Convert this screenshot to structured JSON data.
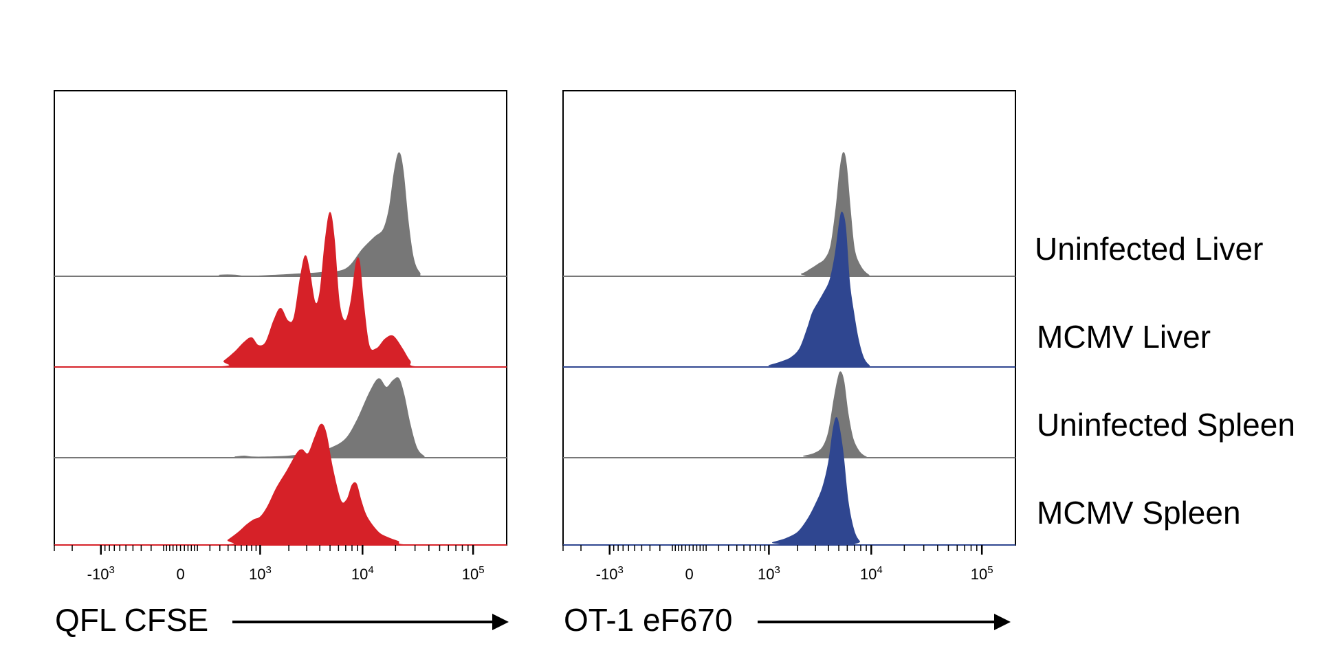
{
  "chart_data": [
    {
      "type": "histogram",
      "xlabel": "QFL CFSE",
      "xscale": "biexponential",
      "xlim": [
        -3000,
        200000
      ],
      "tick_labels": [
        {
          "value": -1000,
          "base": "-10",
          "exp": "3"
        },
        {
          "value": 0,
          "base": "0",
          "exp": ""
        },
        {
          "value": 1000,
          "base": "10",
          "exp": "3"
        },
        {
          "value": 10000,
          "base": "10",
          "exp": "4"
        },
        {
          "value": 100000,
          "base": "10",
          "exp": "5"
        }
      ],
      "series": [
        {
          "label": "Uninfected Liver",
          "color": "#777777",
          "points": [
            [
              -3000,
              0
            ],
            [
              200,
              0
            ],
            [
              300,
              0.01
            ],
            [
              500,
              0.01
            ],
            [
              700,
              0.0
            ],
            [
              1500,
              0.01
            ],
            [
              2500,
              0.02
            ],
            [
              4000,
              0.03
            ],
            [
              7000,
              0.06
            ],
            [
              10000,
              0.22
            ],
            [
              13000,
              0.32
            ],
            [
              15500,
              0.38
            ],
            [
              17500,
              0.55
            ],
            [
              19500,
              0.85
            ],
            [
              21500,
              1.0
            ],
            [
              23500,
              0.85
            ],
            [
              26000,
              0.45
            ],
            [
              29000,
              0.15
            ],
            [
              33000,
              0.03
            ],
            [
              40000,
              0
            ],
            [
              200000,
              0
            ]
          ]
        },
        {
          "label": "MCMV Liver",
          "color": "#d62128",
          "points": [
            [
              -3000,
              0
            ],
            [
              250,
              0
            ],
            [
              350,
              0.04
            ],
            [
              500,
              0.1
            ],
            [
              650,
              0.16
            ],
            [
              800,
              0.19
            ],
            [
              950,
              0.14
            ],
            [
              1150,
              0.16
            ],
            [
              1400,
              0.3
            ],
            [
              1650,
              0.38
            ],
            [
              1950,
              0.3
            ],
            [
              2250,
              0.32
            ],
            [
              2600,
              0.58
            ],
            [
              2900,
              0.72
            ],
            [
              3200,
              0.62
            ],
            [
              3600,
              0.42
            ],
            [
              4000,
              0.48
            ],
            [
              4500,
              0.82
            ],
            [
              5000,
              1.0
            ],
            [
              5500,
              0.82
            ],
            [
              6100,
              0.42
            ],
            [
              6900,
              0.3
            ],
            [
              7800,
              0.42
            ],
            [
              8700,
              0.67
            ],
            [
              9400,
              0.68
            ],
            [
              10200,
              0.42
            ],
            [
              11500,
              0.14
            ],
            [
              13500,
              0.12
            ],
            [
              16000,
              0.18
            ],
            [
              19000,
              0.2
            ],
            [
              23000,
              0.12
            ],
            [
              27000,
              0.04
            ],
            [
              33000,
              0
            ],
            [
              200000,
              0
            ]
          ]
        },
        {
          "label": "Uninfected Spleen",
          "color": "#777777",
          "points": [
            [
              -3000,
              0
            ],
            [
              400,
              0
            ],
            [
              500,
              0.01
            ],
            [
              650,
              0.02
            ],
            [
              800,
              0.01
            ],
            [
              1200,
              0.01
            ],
            [
              2000,
              0.02
            ],
            [
              3500,
              0.06
            ],
            [
              5000,
              0.11
            ],
            [
              7000,
              0.22
            ],
            [
              9000,
              0.45
            ],
            [
              11500,
              0.75
            ],
            [
              14000,
              0.92
            ],
            [
              16500,
              0.82
            ],
            [
              19000,
              0.9
            ],
            [
              21500,
              0.92
            ],
            [
              24000,
              0.72
            ],
            [
              27000,
              0.4
            ],
            [
              31000,
              0.12
            ],
            [
              36000,
              0.02
            ],
            [
              42000,
              0
            ],
            [
              200000,
              0
            ]
          ]
        },
        {
          "label": "MCMV Spleen",
          "color": "#d62128",
          "points": [
            [
              -3000,
              0
            ],
            [
              300,
              0
            ],
            [
              400,
              0.04
            ],
            [
              550,
              0.1
            ],
            [
              700,
              0.16
            ],
            [
              850,
              0.2
            ],
            [
              1000,
              0.22
            ],
            [
              1200,
              0.3
            ],
            [
              1500,
              0.45
            ],
            [
              1900,
              0.58
            ],
            [
              2400,
              0.72
            ],
            [
              2700,
              0.75
            ],
            [
              3100,
              0.72
            ],
            [
              3600,
              0.85
            ],
            [
              4100,
              0.95
            ],
            [
              4600,
              0.88
            ],
            [
              5300,
              0.6
            ],
            [
              6300,
              0.35
            ],
            [
              7200,
              0.36
            ],
            [
              8000,
              0.47
            ],
            [
              8800,
              0.48
            ],
            [
              9700,
              0.35
            ],
            [
              11000,
              0.22
            ],
            [
              14000,
              0.1
            ],
            [
              17000,
              0.06
            ],
            [
              21000,
              0.03
            ],
            [
              27000,
              0
            ],
            [
              200000,
              0
            ]
          ]
        }
      ]
    },
    {
      "type": "histogram",
      "xlabel": "OT-1 eF670",
      "xscale": "biexponential",
      "xlim": [
        -3000,
        200000
      ],
      "tick_labels": [
        {
          "value": -1000,
          "base": "-10",
          "exp": "3"
        },
        {
          "value": 0,
          "base": "0",
          "exp": ""
        },
        {
          "value": 1000,
          "base": "10",
          "exp": "3"
        },
        {
          "value": 10000,
          "base": "10",
          "exp": "4"
        },
        {
          "value": 100000,
          "base": "10",
          "exp": "5"
        }
      ],
      "series": [
        {
          "label": "Uninfected Liver",
          "color": "#777777",
          "points": [
            [
              -3000,
              0
            ],
            [
              1500,
              0
            ],
            [
              2200,
              0.02
            ],
            [
              2700,
              0.06
            ],
            [
              3200,
              0.1
            ],
            [
              3700,
              0.14
            ],
            [
              4200,
              0.25
            ],
            [
              4700,
              0.55
            ],
            [
              5100,
              0.85
            ],
            [
              5500,
              1.0
            ],
            [
              5900,
              0.9
            ],
            [
              6400,
              0.55
            ],
            [
              7000,
              0.22
            ],
            [
              8000,
              0.08
            ],
            [
              9500,
              0.01
            ],
            [
              11000,
              0
            ],
            [
              200000,
              0
            ]
          ]
        },
        {
          "label": "MCMV Liver",
          "color": "#2f4690",
          "points": [
            [
              -3000,
              0
            ],
            [
              900,
              0
            ],
            [
              1000,
              0.01
            ],
            [
              1300,
              0.03
            ],
            [
              1700,
              0.06
            ],
            [
              2100,
              0.12
            ],
            [
              2500,
              0.25
            ],
            [
              2800,
              0.35
            ],
            [
              3200,
              0.42
            ],
            [
              3600,
              0.48
            ],
            [
              4100,
              0.56
            ],
            [
              4600,
              0.72
            ],
            [
              5100,
              0.95
            ],
            [
              5400,
              1.0
            ],
            [
              5800,
              0.9
            ],
            [
              6300,
              0.55
            ],
            [
              6900,
              0.35
            ],
            [
              7600,
              0.18
            ],
            [
              8500,
              0.06
            ],
            [
              9600,
              0.01
            ],
            [
              11000,
              0
            ],
            [
              200000,
              0
            ]
          ]
        },
        {
          "label": "Uninfected Spleen",
          "color": "#777777",
          "points": [
            [
              -3000,
              0
            ],
            [
              1800,
              0
            ],
            [
              2300,
              0.02
            ],
            [
              2900,
              0.05
            ],
            [
              3500,
              0.12
            ],
            [
              4000,
              0.3
            ],
            [
              4500,
              0.68
            ],
            [
              4900,
              0.92
            ],
            [
              5200,
              1.0
            ],
            [
              5600,
              0.88
            ],
            [
              6100,
              0.52
            ],
            [
              6800,
              0.22
            ],
            [
              7800,
              0.07
            ],
            [
              9000,
              0.01
            ],
            [
              10500,
              0
            ],
            [
              200000,
              0
            ]
          ]
        },
        {
          "label": "MCMV Spleen",
          "color": "#2f4690",
          "points": [
            [
              -3000,
              0
            ],
            [
              900,
              0
            ],
            [
              1100,
              0.02
            ],
            [
              1500,
              0.05
            ],
            [
              2000,
              0.1
            ],
            [
              2500,
              0.2
            ],
            [
              3000,
              0.32
            ],
            [
              3500,
              0.45
            ],
            [
              4000,
              0.65
            ],
            [
              4400,
              0.9
            ],
            [
              4700,
              1.0
            ],
            [
              5000,
              0.95
            ],
            [
              5500,
              0.72
            ],
            [
              6100,
              0.35
            ],
            [
              6900,
              0.12
            ],
            [
              7800,
              0.03
            ],
            [
              9000,
              0
            ],
            [
              200000,
              0
            ]
          ]
        }
      ]
    }
  ],
  "row_labels": [
    "Uninfected Liver",
    "MCMV Liver",
    "Uninfected Spleen",
    "MCMV Spleen"
  ],
  "colors": {
    "gray": "#777777",
    "red": "#d62128",
    "blue": "#2f4690",
    "frame": "#000000"
  }
}
